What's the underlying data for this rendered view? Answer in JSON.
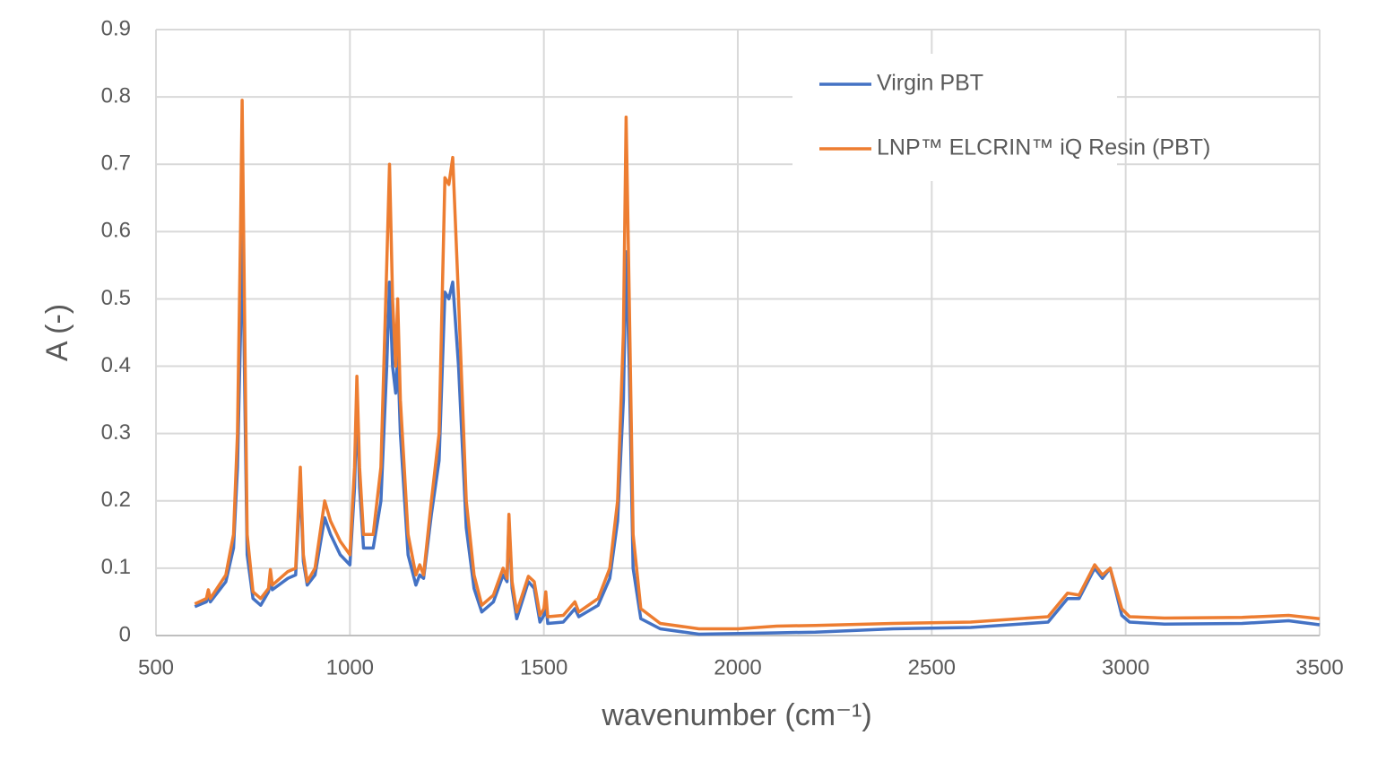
{
  "chart_data": {
    "type": "line",
    "xlabel": "wavenumber (cm⁻¹)",
    "ylabel": "A (-)",
    "x": [
      600,
      630,
      635,
      640,
      680,
      700,
      710,
      718,
      722,
      728,
      735,
      750,
      770,
      790,
      795,
      800,
      840,
      860,
      872,
      880,
      890,
      910,
      935,
      950,
      975,
      1000,
      1012,
      1018,
      1025,
      1035,
      1060,
      1080,
      1095,
      1102,
      1110,
      1118,
      1123,
      1130,
      1150,
      1170,
      1180,
      1190,
      1210,
      1230,
      1245,
      1255,
      1265,
      1280,
      1300,
      1320,
      1340,
      1370,
      1395,
      1405,
      1410,
      1418,
      1430,
      1460,
      1475,
      1490,
      1500,
      1505,
      1510,
      1550,
      1580,
      1590,
      1640,
      1670,
      1690,
      1705,
      1712,
      1720,
      1730,
      1750,
      1800,
      1900,
      2000,
      2100,
      2200,
      2400,
      2600,
      2800,
      2850,
      2880,
      2920,
      2940,
      2960,
      2990,
      3010,
      3100,
      3300,
      3420,
      3500
    ],
    "series": [
      {
        "name": "Virgin PBT",
        "color": "#4472c4",
        "values": [
          0.043,
          0.05,
          0.06,
          0.05,
          0.08,
          0.13,
          0.25,
          0.45,
          0.64,
          0.4,
          0.12,
          0.055,
          0.045,
          0.065,
          0.08,
          0.068,
          0.085,
          0.09,
          0.23,
          0.11,
          0.075,
          0.09,
          0.175,
          0.15,
          0.12,
          0.105,
          0.22,
          0.35,
          0.22,
          0.13,
          0.13,
          0.2,
          0.4,
          0.525,
          0.4,
          0.36,
          0.42,
          0.3,
          0.12,
          0.075,
          0.09,
          0.085,
          0.18,
          0.26,
          0.51,
          0.5,
          0.525,
          0.4,
          0.16,
          0.07,
          0.035,
          0.05,
          0.09,
          0.08,
          0.17,
          0.07,
          0.025,
          0.08,
          0.07,
          0.02,
          0.03,
          0.05,
          0.018,
          0.02,
          0.04,
          0.028,
          0.045,
          0.085,
          0.17,
          0.35,
          0.57,
          0.4,
          0.1,
          0.025,
          0.01,
          0.002,
          0.003,
          0.004,
          0.005,
          0.01,
          0.012,
          0.02,
          0.055,
          0.055,
          0.1,
          0.085,
          0.1,
          0.03,
          0.02,
          0.017,
          0.018,
          0.022,
          0.016
        ]
      },
      {
        "name": "LNP™ ELCRIN™ iQ Resin (PBT)",
        "color": "#ed7d31",
        "values": [
          0.047,
          0.055,
          0.068,
          0.055,
          0.09,
          0.15,
          0.3,
          0.6,
          0.795,
          0.5,
          0.15,
          0.065,
          0.055,
          0.07,
          0.098,
          0.075,
          0.095,
          0.1,
          0.25,
          0.12,
          0.08,
          0.1,
          0.2,
          0.17,
          0.14,
          0.12,
          0.25,
          0.385,
          0.25,
          0.15,
          0.15,
          0.25,
          0.55,
          0.7,
          0.5,
          0.4,
          0.5,
          0.35,
          0.15,
          0.09,
          0.105,
          0.09,
          0.2,
          0.3,
          0.68,
          0.67,
          0.71,
          0.5,
          0.2,
          0.09,
          0.045,
          0.06,
          0.1,
          0.085,
          0.18,
          0.08,
          0.035,
          0.088,
          0.08,
          0.03,
          0.04,
          0.065,
          0.028,
          0.03,
          0.05,
          0.035,
          0.055,
          0.1,
          0.2,
          0.45,
          0.77,
          0.5,
          0.15,
          0.04,
          0.018,
          0.01,
          0.01,
          0.014,
          0.015,
          0.018,
          0.02,
          0.028,
          0.063,
          0.06,
          0.105,
          0.09,
          0.1,
          0.04,
          0.028,
          0.026,
          0.027,
          0.03,
          0.025
        ]
      }
    ],
    "xlim": [
      500,
      3500
    ],
    "xticks": [
      500,
      1000,
      1500,
      2000,
      2500,
      3000,
      3500
    ],
    "ylim": [
      0,
      0.9
    ],
    "yticks": [
      0,
      0.1,
      0.2,
      0.3,
      0.4,
      0.5,
      0.6,
      0.7,
      0.8,
      0.9
    ],
    "grid": true,
    "legend": "upper-right"
  }
}
